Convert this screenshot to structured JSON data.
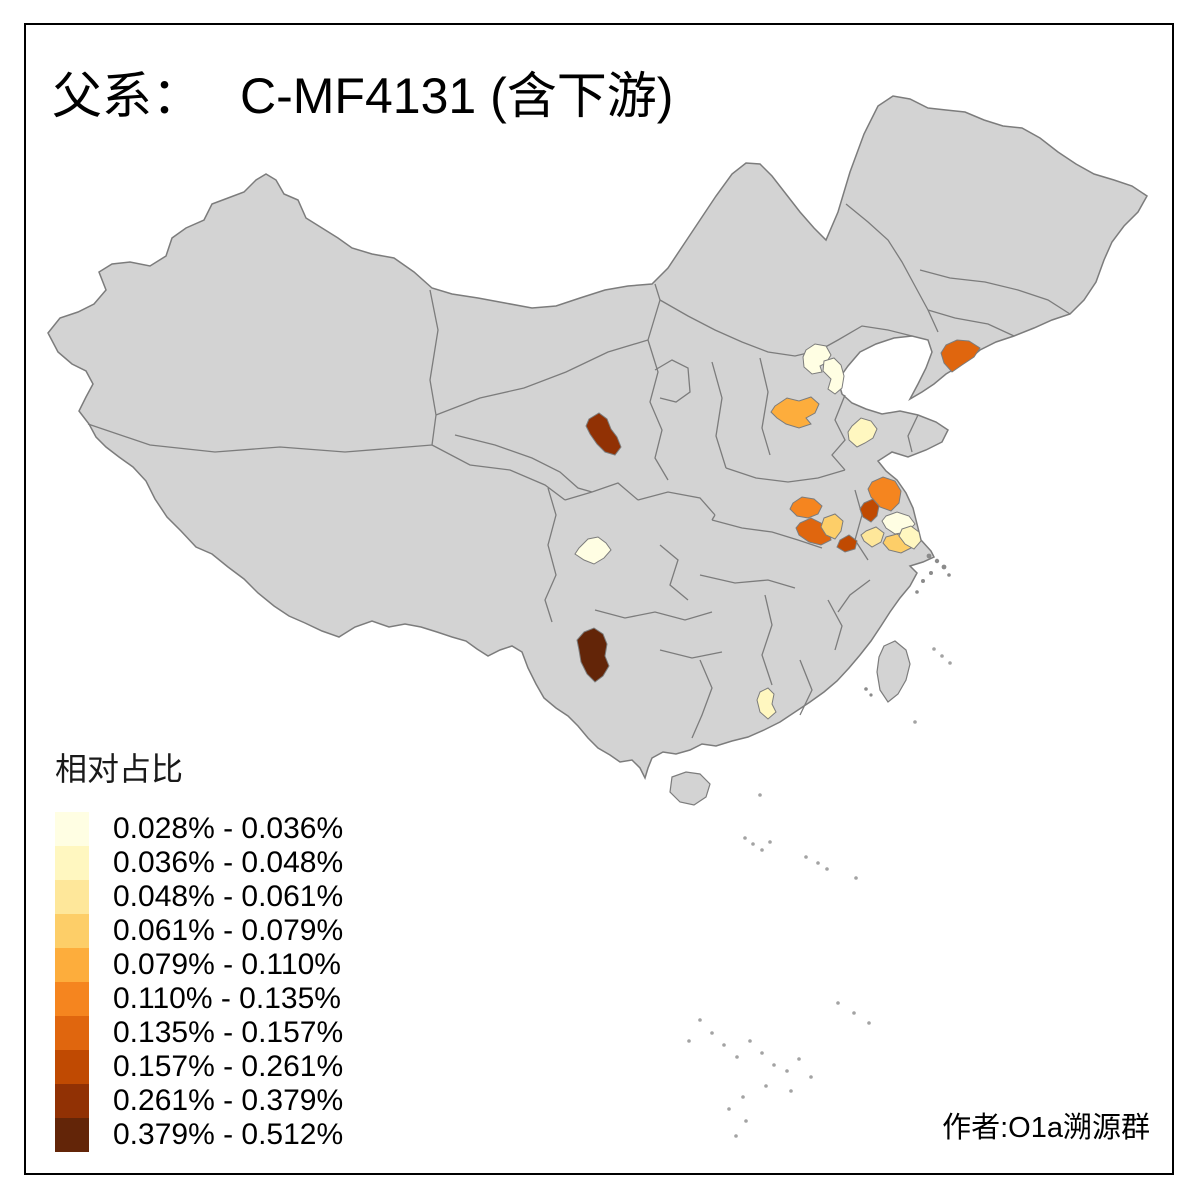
{
  "title": {
    "prefix": "父系：",
    "main": "C-MF4131 (含下游)"
  },
  "attribution": "作者:O1a溯源群",
  "legend": {
    "title": "相对占比",
    "classes": [
      {
        "label": "0.028% - 0.036%",
        "color": "#FFFEE3"
      },
      {
        "label": "0.036% - 0.048%",
        "color": "#FFF7C0"
      },
      {
        "label": "0.048% - 0.061%",
        "color": "#FEE79A"
      },
      {
        "label": "0.061% - 0.079%",
        "color": "#FDCE68"
      },
      {
        "label": "0.079% - 0.110%",
        "color": "#FDAD3C"
      },
      {
        "label": "0.110% - 0.135%",
        "color": "#F5851F"
      },
      {
        "label": "0.135% - 0.157%",
        "color": "#E0660E"
      },
      {
        "label": "0.157% - 0.261%",
        "color": "#C04A02"
      },
      {
        "label": "0.261% - 0.379%",
        "color": "#913104"
      },
      {
        "label": "0.379% - 0.512%",
        "color": "#632508"
      }
    ]
  },
  "map": {
    "land_color": "#D3D3D3",
    "border_color": "#7C7C7C",
    "sea_color": "#FFFFFF",
    "frame_color": "#000000"
  },
  "chart_data": {
    "type": "choropleth-map",
    "title": "父系： C-MF4131 (含下游)",
    "legend_title": "相对占比",
    "unit": "percent of population (relative share)",
    "bins": [
      "0.028% - 0.036%",
      "0.036% - 0.048%",
      "0.048% - 0.061%",
      "0.061% - 0.079%",
      "0.079% - 0.110%",
      "0.110% - 0.135%",
      "0.135% - 0.157%",
      "0.157% - 0.261%",
      "0.261% - 0.379%",
      "0.379% - 0.512%"
    ],
    "regions": [
      {
        "id": "beijing",
        "bin": 1
      },
      {
        "id": "tianjin",
        "bin": 1
      },
      {
        "id": "hebei-south",
        "bin": 5
      },
      {
        "id": "shandong-central",
        "bin": 2
      },
      {
        "id": "dalian",
        "bin": 7
      },
      {
        "id": "gansu-dingxi",
        "bin": 9
      },
      {
        "id": "henan-zhoukou",
        "bin": 6
      },
      {
        "id": "anhui-fuyang",
        "bin": 7
      },
      {
        "id": "anhui-bozhou",
        "bin": 4
      },
      {
        "id": "anhui-huainan",
        "bin": 8
      },
      {
        "id": "jiangsu-yancheng",
        "bin": 6
      },
      {
        "id": "jiangsu-huaian",
        "bin": 8
      },
      {
        "id": "jiangsu-taizhou",
        "bin": 1
      },
      {
        "id": "jiangsu-yangzhou",
        "bin": 3
      },
      {
        "id": "jiangsu-changzhou",
        "bin": 4
      },
      {
        "id": "jiangsu-nantong",
        "bin": 2
      },
      {
        "id": "sichuan-chengdu",
        "bin": 1
      },
      {
        "id": "yunnan-central",
        "bin": 10
      },
      {
        "id": "guangdong-west",
        "bin": 2
      }
    ]
  }
}
